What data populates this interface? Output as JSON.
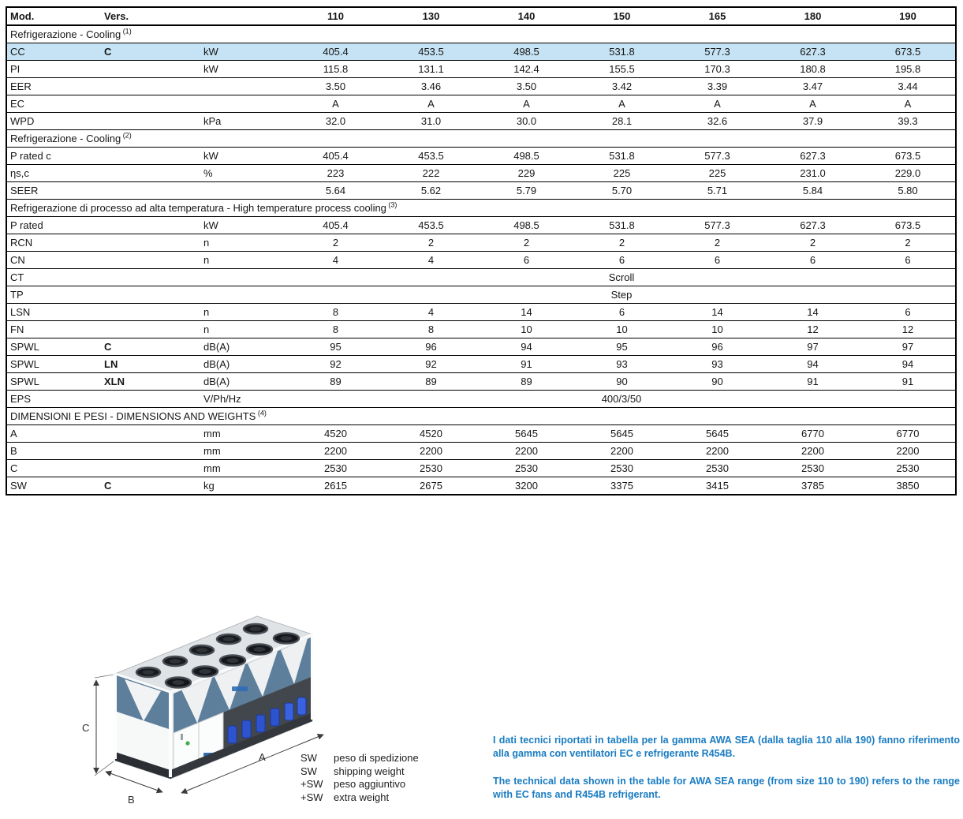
{
  "table": {
    "header": {
      "mod": "Mod.",
      "vers": "Vers."
    },
    "columns": [
      "110",
      "130",
      "140",
      "150",
      "165",
      "180",
      "190"
    ],
    "rows": [
      {
        "type": "section",
        "label": "Refrigerazione - Cooling",
        "sup": "(1)"
      },
      {
        "type": "data",
        "mod": "CC",
        "vers": "C",
        "unit": "kW",
        "highlight": true,
        "values": [
          "405.4",
          "453.5",
          "498.5",
          "531.8",
          "577.3",
          "627.3",
          "673.5"
        ]
      },
      {
        "type": "data",
        "mod": "PI",
        "vers": "",
        "unit": "kW",
        "values": [
          "115.8",
          "131.1",
          "142.4",
          "155.5",
          "170.3",
          "180.8",
          "195.8"
        ]
      },
      {
        "type": "data",
        "mod": "EER",
        "vers": "",
        "unit": "",
        "values": [
          "3.50",
          "3.46",
          "3.50",
          "3.42",
          "3.39",
          "3.47",
          "3.44"
        ]
      },
      {
        "type": "data",
        "mod": "EC",
        "vers": "",
        "unit": "",
        "values": [
          "A",
          "A",
          "A",
          "A",
          "A",
          "A",
          "A"
        ]
      },
      {
        "type": "data",
        "mod": "WPD",
        "vers": "",
        "unit": "kPa",
        "values": [
          "32.0",
          "31.0",
          "30.0",
          "28.1",
          "32.6",
          "37.9",
          "39.3"
        ]
      },
      {
        "type": "section",
        "label": "Refrigerazione - Cooling",
        "sup": "(2)"
      },
      {
        "type": "data",
        "mod": "P rated c",
        "vers": "",
        "unit": "kW",
        "values": [
          "405.4",
          "453.5",
          "498.5",
          "531.8",
          "577.3",
          "627.3",
          "673.5"
        ]
      },
      {
        "type": "data",
        "mod": "ηs,c",
        "vers": "",
        "unit": "%",
        "values": [
          "223",
          "222",
          "229",
          "225",
          "225",
          "231.0",
          "229.0"
        ]
      },
      {
        "type": "data",
        "mod": "SEER",
        "vers": "",
        "unit": "",
        "values": [
          "5.64",
          "5.62",
          "5.79",
          "5.70",
          "5.71",
          "5.84",
          "5.80"
        ]
      },
      {
        "type": "section",
        "label": "Refrigerazione di processo ad alta temperatura - High temperature process cooling",
        "sup": "(3)"
      },
      {
        "type": "data",
        "mod": "P rated",
        "vers": "",
        "unit": "kW",
        "values": [
          "405.4",
          "453.5",
          "498.5",
          "531.8",
          "577.3",
          "627.3",
          "673.5"
        ]
      },
      {
        "type": "data",
        "mod": "RCN",
        "vers": "",
        "unit": "n",
        "values": [
          "2",
          "2",
          "2",
          "2",
          "2",
          "2",
          "2"
        ]
      },
      {
        "type": "data",
        "mod": "CN",
        "vers": "",
        "unit": "n",
        "values": [
          "4",
          "4",
          "6",
          "6",
          "6",
          "6",
          "6"
        ]
      },
      {
        "type": "span",
        "mod": "CT",
        "vers": "",
        "unit": "",
        "value": "Scroll"
      },
      {
        "type": "span",
        "mod": "TP",
        "vers": "",
        "unit": "",
        "value": "Step"
      },
      {
        "type": "data",
        "mod": "LSN",
        "vers": "",
        "unit": "n",
        "values": [
          "8",
          "4",
          "14",
          "6",
          "14",
          "14",
          "6"
        ]
      },
      {
        "type": "data",
        "mod": "FN",
        "vers": "",
        "unit": "n",
        "values": [
          "8",
          "8",
          "10",
          "10",
          "10",
          "12",
          "12"
        ]
      },
      {
        "type": "data",
        "mod": "SPWL",
        "vers": "C",
        "unit": "dB(A)",
        "values": [
          "95",
          "96",
          "94",
          "95",
          "96",
          "97",
          "97"
        ]
      },
      {
        "type": "data",
        "mod": "SPWL",
        "vers": "LN",
        "unit": "dB(A)",
        "values": [
          "92",
          "92",
          "91",
          "93",
          "93",
          "94",
          "94"
        ]
      },
      {
        "type": "data",
        "mod": "SPWL",
        "vers": "XLN",
        "unit": "dB(A)",
        "values": [
          "89",
          "89",
          "89",
          "90",
          "90",
          "91",
          "91"
        ]
      },
      {
        "type": "span",
        "mod": "EPS",
        "vers": "",
        "unit": "V/Ph/Hz",
        "value": "400/3/50"
      },
      {
        "type": "section",
        "label": "DIMENSIONI E PESI - DIMENSIONS AND WEIGHTS",
        "sup": "(4)"
      },
      {
        "type": "data",
        "mod": "A",
        "vers": "",
        "unit": "mm",
        "values": [
          "4520",
          "4520",
          "5645",
          "5645",
          "5645",
          "6770",
          "6770"
        ]
      },
      {
        "type": "data",
        "mod": "B",
        "vers": "",
        "unit": "mm",
        "values": [
          "2200",
          "2200",
          "2200",
          "2200",
          "2200",
          "2200",
          "2200"
        ]
      },
      {
        "type": "data",
        "mod": "C",
        "vers": "",
        "unit": "mm",
        "values": [
          "2530",
          "2530",
          "2530",
          "2530",
          "2530",
          "2530",
          "2530"
        ]
      },
      {
        "type": "data",
        "mod": "SW",
        "vers": "C",
        "unit": "kg",
        "values": [
          "2615",
          "2675",
          "3200",
          "3375",
          "3415",
          "3785",
          "3850"
        ]
      }
    ]
  },
  "figure": {
    "labels": {
      "a": "A",
      "b": "B",
      "c": "C"
    }
  },
  "legend": {
    "items": [
      {
        "sym": "SW",
        "label": "peso di spedizione"
      },
      {
        "sym": "SW",
        "label": "shipping weight"
      },
      {
        "sym": "+SW",
        "label": "peso aggiuntivo"
      },
      {
        "sym": "+SW",
        "label": "extra weight"
      }
    ]
  },
  "notes": {
    "it": "I dati tecnici riportati in tabella per la gamma AWA SEA (dalla taglia 110 alla 190) fanno riferimento alla gamma con ventilatori EC e refrigerante R454B.",
    "en": "The technical data shown in the table for AWA SEA range (from size 110 to 190) refers to the range with EC fans and R454B refrigerant."
  },
  "colors": {
    "highlight_row": "#c5e3f4",
    "note_text": "#1a7cc2",
    "table_border": "#000000",
    "coil_panel": "#5d7f9c",
    "compressor_blue": "#2e53cf"
  }
}
